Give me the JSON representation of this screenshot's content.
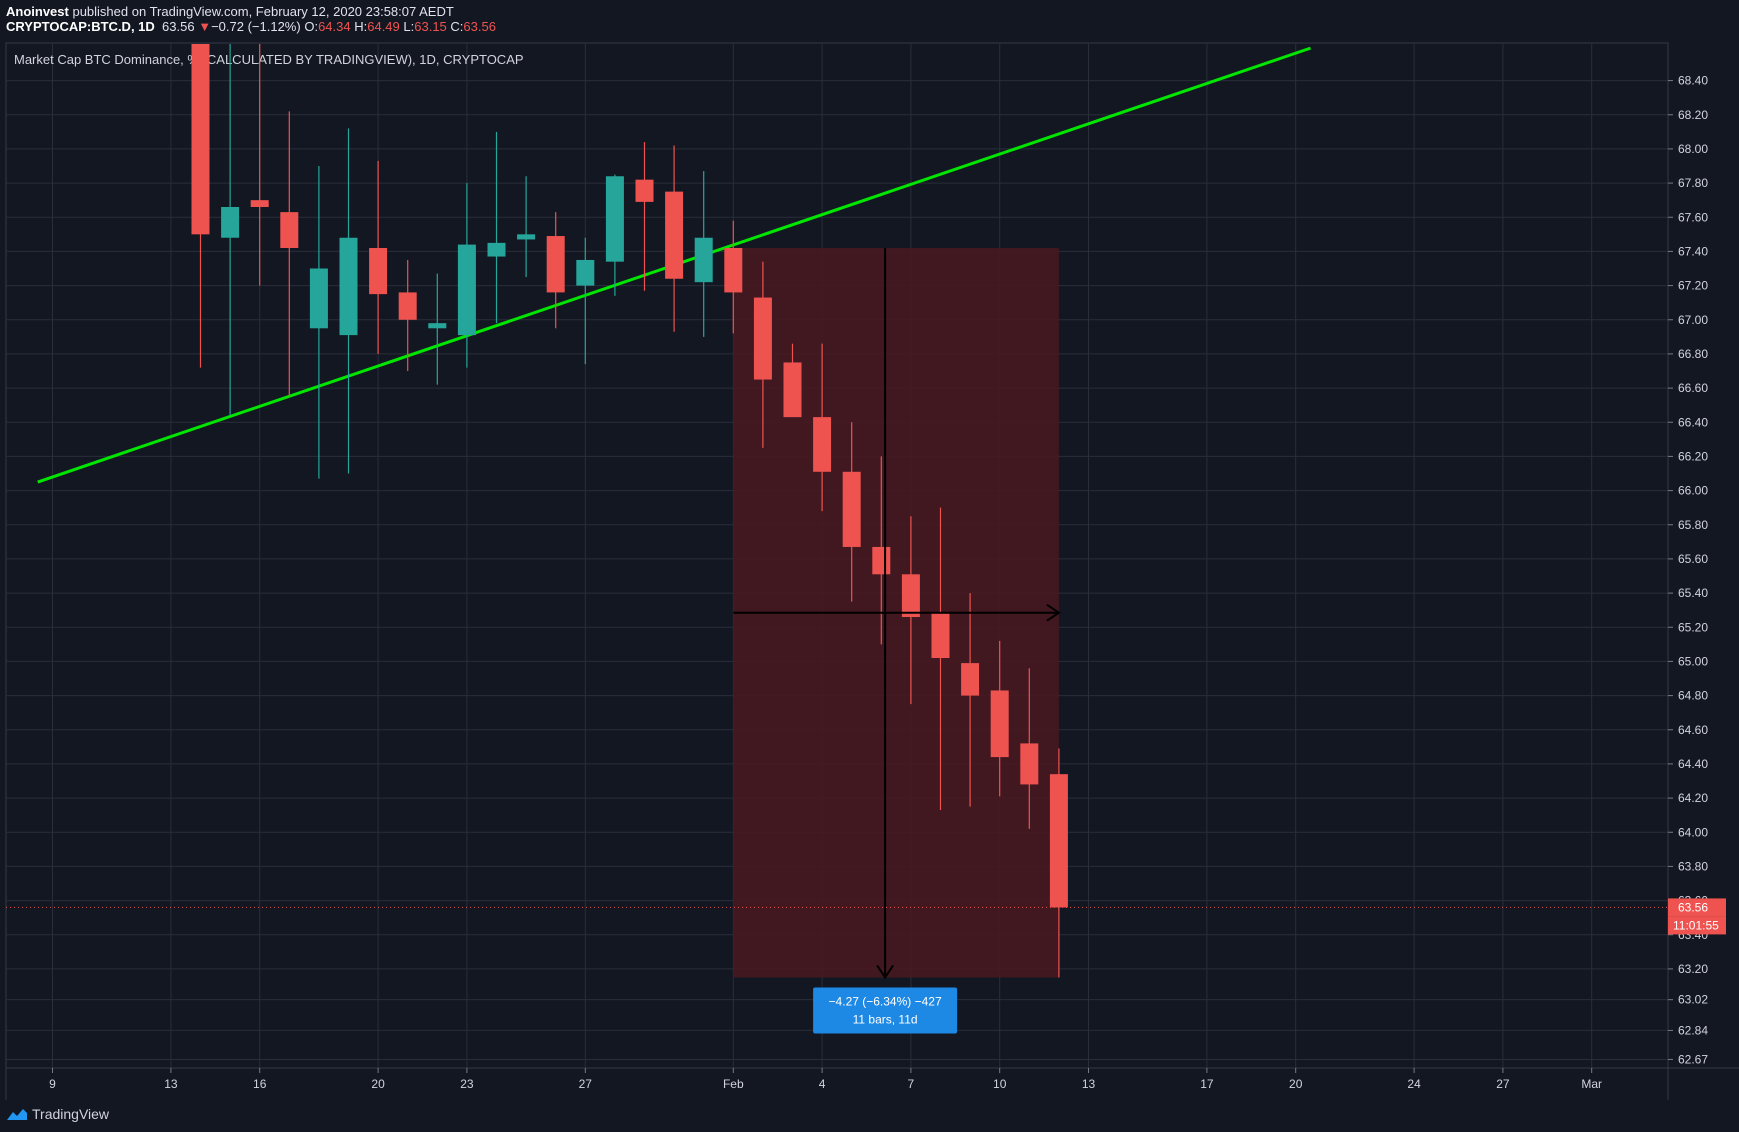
{
  "header": {
    "author": "Anoinvest",
    "published_text": "published on TradingView.com, February 12, 2020 23:58:07 AEDT",
    "symbol": "CRYPTOCAP:BTC.D, 1D",
    "last": "63.56",
    "change_arrow": "▼",
    "change": "−0.72 (−1.12%)",
    "o_label": "O:",
    "o_value": "64.34",
    "h_label": "H:",
    "h_value": "64.49",
    "l_label": "L:",
    "l_value": "63.15",
    "c_label": "C:",
    "c_value": "63.56"
  },
  "chart_data": {
    "type": "candlestick",
    "title": "Market Cap BTC Dominance, % (CALCULATED BY TRADINGVIEW), 1D, CRYPTOCAP",
    "colors": {
      "up": "#26a69a",
      "down": "#ef5350",
      "trendline": "#00e600",
      "measure_box": "#4a1820",
      "label_bg": "#1e88e5",
      "background": "#131722",
      "grid": "#2a2e39"
    },
    "y_ticks": [
      "68.40",
      "68.20",
      "68.00",
      "67.80",
      "67.60",
      "67.40",
      "67.20",
      "67.00",
      "66.80",
      "66.60",
      "66.40",
      "66.20",
      "66.00",
      "65.80",
      "65.60",
      "65.40",
      "65.20",
      "65.00",
      "64.80",
      "64.60",
      "64.40",
      "64.20",
      "64.00",
      "63.80",
      "63.60",
      "63.40",
      "63.20",
      "63.02",
      "62.84",
      "62.67"
    ],
    "x_ticks": [
      {
        "label": "9",
        "day": 9
      },
      {
        "label": "13",
        "day": 13
      },
      {
        "label": "16",
        "day": 16
      },
      {
        "label": "20",
        "day": 20
      },
      {
        "label": "23",
        "day": 23
      },
      {
        "label": "27",
        "day": 27
      },
      {
        "label": "Feb",
        "day": 32
      },
      {
        "label": "4",
        "day": 35
      },
      {
        "label": "7",
        "day": 38
      },
      {
        "label": "10",
        "day": 41
      },
      {
        "label": "13",
        "day": 44
      },
      {
        "label": "17",
        "day": 48
      },
      {
        "label": "20",
        "day": 51
      },
      {
        "label": "24",
        "day": 55
      },
      {
        "label": "27",
        "day": 58
      },
      {
        "label": "Mar",
        "day": 61
      }
    ],
    "candles": [
      {
        "day": 14,
        "o": 68.8,
        "h": 69.0,
        "l": 66.72,
        "c": 67.5
      },
      {
        "day": 15,
        "o": 67.48,
        "h": 69.0,
        "l": 66.44,
        "c": 67.66
      },
      {
        "day": 16,
        "o": 67.7,
        "h": 69.0,
        "l": 67.2,
        "c": 67.66
      },
      {
        "day": 17,
        "o": 67.63,
        "h": 68.22,
        "l": 66.55,
        "c": 67.42
      },
      {
        "day": 18,
        "o": 66.95,
        "h": 67.9,
        "l": 66.07,
        "c": 67.3
      },
      {
        "day": 19,
        "o": 66.91,
        "h": 68.12,
        "l": 66.1,
        "c": 67.48
      },
      {
        "day": 20,
        "o": 67.42,
        "h": 67.93,
        "l": 66.8,
        "c": 67.15
      },
      {
        "day": 21,
        "o": 67.16,
        "h": 67.35,
        "l": 66.7,
        "c": 67.0
      },
      {
        "day": 22,
        "o": 66.95,
        "h": 67.27,
        "l": 66.62,
        "c": 66.98
      },
      {
        "day": 23,
        "o": 66.91,
        "h": 67.8,
        "l": 66.72,
        "c": 67.44
      },
      {
        "day": 24,
        "o": 67.37,
        "h": 68.1,
        "l": 66.98,
        "c": 67.45
      },
      {
        "day": 25,
        "o": 67.47,
        "h": 67.84,
        "l": 67.25,
        "c": 67.5
      },
      {
        "day": 26,
        "o": 67.49,
        "h": 67.63,
        "l": 66.95,
        "c": 67.16
      },
      {
        "day": 27,
        "o": 67.2,
        "h": 67.48,
        "l": 66.74,
        "c": 67.35
      },
      {
        "day": 28,
        "o": 67.34,
        "h": 67.85,
        "l": 67.14,
        "c": 67.84
      },
      {
        "day": 29,
        "o": 67.82,
        "h": 68.04,
        "l": 67.17,
        "c": 67.69
      },
      {
        "day": 30,
        "o": 67.75,
        "h": 68.02,
        "l": 66.93,
        "c": 67.24
      },
      {
        "day": 31,
        "o": 67.22,
        "h": 67.87,
        "l": 66.9,
        "c": 67.48
      },
      {
        "day": 32,
        "o": 67.42,
        "h": 67.58,
        "l": 66.92,
        "c": 67.16
      },
      {
        "day": 33,
        "o": 67.13,
        "h": 67.34,
        "l": 66.25,
        "c": 66.65
      },
      {
        "day": 34,
        "o": 66.75,
        "h": 66.86,
        "l": 66.44,
        "c": 66.43
      },
      {
        "day": 35,
        "o": 66.43,
        "h": 66.86,
        "l": 65.88,
        "c": 66.11
      },
      {
        "day": 36,
        "o": 66.11,
        "h": 66.4,
        "l": 65.35,
        "c": 65.67
      },
      {
        "day": 37,
        "o": 65.67,
        "h": 66.2,
        "l": 65.1,
        "c": 65.51
      },
      {
        "day": 38,
        "o": 65.51,
        "h": 65.85,
        "l": 64.75,
        "c": 65.26
      },
      {
        "day": 39,
        "o": 65.28,
        "h": 65.9,
        "l": 64.13,
        "c": 65.02
      },
      {
        "day": 40,
        "o": 64.99,
        "h": 65.4,
        "l": 64.15,
        "c": 64.8
      },
      {
        "day": 41,
        "o": 64.83,
        "h": 65.12,
        "l": 64.21,
        "c": 64.44
      },
      {
        "day": 42,
        "o": 64.52,
        "h": 64.96,
        "l": 64.02,
        "c": 64.28
      },
      {
        "day": 43,
        "o": 64.34,
        "h": 64.49,
        "l": 63.15,
        "c": 63.56
      }
    ],
    "trendline": {
      "from": {
        "day": 8.5,
        "value": 66.05
      },
      "to": {
        "day": 51.5,
        "value": 68.59
      }
    },
    "measure": {
      "from_day": 32,
      "to_day": 43,
      "top": 67.42,
      "bottom": 63.15,
      "label_line1": "−4.27 (−6.34%) −427",
      "label_line2": "11 bars, 11d"
    },
    "last_price": {
      "value": 63.56,
      "label": "63.56",
      "countdown": "11:01:55"
    },
    "ylim": [
      62.62,
      68.62
    ],
    "grid": true,
    "xlabel": "",
    "ylabel": ""
  },
  "footer": {
    "brand": "TradingView",
    "logo_icon": "tradingview-logo-icon"
  }
}
